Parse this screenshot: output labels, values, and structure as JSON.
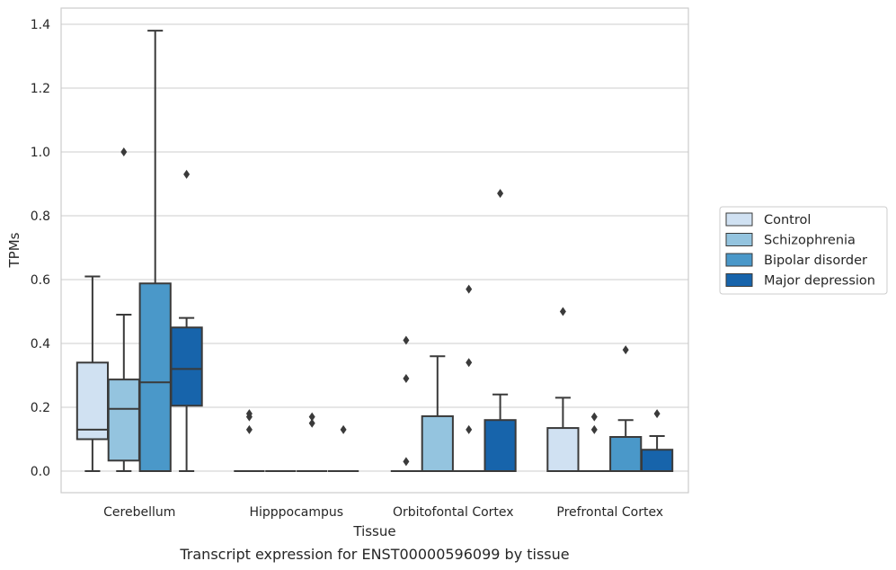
{
  "chart_data": {
    "type": "box",
    "title": "",
    "caption": "Transcript expression for ENST00000596099 by tissue",
    "xlabel": "Tissue",
    "ylabel": "TPMs",
    "ylim": [
      -0.07,
      1.45
    ],
    "yticks": [
      0.0,
      0.2,
      0.4,
      0.6,
      0.8,
      1.0,
      1.2,
      1.4
    ],
    "ytick_labels": [
      "0.0",
      "0.2",
      "0.4",
      "0.6",
      "0.8",
      "1.0",
      "1.2",
      "1.4"
    ],
    "grid": true,
    "legend_position": "right",
    "categories": [
      "Cerebellum",
      "Hipppocampus",
      "Orbitofontal Cortex",
      "Prefrontal Cortex"
    ],
    "series": [
      {
        "name": "Control",
        "color": "#d0e1f2",
        "boxes": [
          {
            "min": 0.0,
            "q1": 0.1,
            "median": 0.13,
            "q3": 0.34,
            "max": 0.61,
            "outliers": []
          },
          {
            "min": 0.0,
            "q1": 0.0,
            "median": 0.0,
            "q3": 0.0,
            "max": 0.0,
            "outliers": [
              0.13,
              0.17,
              0.18
            ]
          },
          {
            "min": 0.0,
            "q1": 0.0,
            "median": 0.0,
            "q3": 0.0,
            "max": 0.0,
            "outliers": [
              0.03,
              0.29,
              0.41
            ]
          },
          {
            "min": 0.0,
            "q1": 0.0,
            "median": 0.0,
            "q3": 0.135,
            "max": 0.23,
            "outliers": [
              0.5
            ]
          }
        ]
      },
      {
        "name": "Schizophrenia",
        "color": "#94c4df",
        "boxes": [
          {
            "min": 0.0,
            "q1": 0.033,
            "median": 0.195,
            "q3": 0.287,
            "max": 0.49,
            "outliers": [
              1.0
            ]
          },
          {
            "min": 0.0,
            "q1": 0.0,
            "median": 0.0,
            "q3": 0.0,
            "max": 0.0,
            "outliers": []
          },
          {
            "min": 0.0,
            "q1": 0.0,
            "median": 0.0,
            "q3": 0.172,
            "max": 0.36,
            "outliers": []
          },
          {
            "min": 0.0,
            "q1": 0.0,
            "median": 0.0,
            "q3": 0.0,
            "max": 0.0,
            "outliers": [
              0.13,
              0.17
            ]
          }
        ]
      },
      {
        "name": "Bipolar disorder",
        "color": "#4a98c9",
        "boxes": [
          {
            "min": 0.0,
            "q1": 0.0,
            "median": 0.278,
            "q3": 0.588,
            "max": 1.38,
            "outliers": []
          },
          {
            "min": 0.0,
            "q1": 0.0,
            "median": 0.0,
            "q3": 0.0,
            "max": 0.0,
            "outliers": [
              0.15,
              0.17
            ]
          },
          {
            "min": 0.0,
            "q1": 0.0,
            "median": 0.0,
            "q3": 0.0,
            "max": 0.0,
            "outliers": [
              0.13,
              0.34,
              0.57
            ]
          },
          {
            "min": 0.0,
            "q1": 0.0,
            "median": 0.0,
            "q3": 0.107,
            "max": 0.16,
            "outliers": [
              0.38
            ]
          }
        ]
      },
      {
        "name": "Major depression",
        "color": "#1764ab",
        "boxes": [
          {
            "min": 0.0,
            "q1": 0.205,
            "median": 0.32,
            "q3": 0.45,
            "max": 0.48,
            "outliers": [
              0.93
            ]
          },
          {
            "min": 0.0,
            "q1": 0.0,
            "median": 0.0,
            "q3": 0.0,
            "max": 0.0,
            "outliers": [
              0.13
            ]
          },
          {
            "min": 0.0,
            "q1": 0.0,
            "median": 0.0,
            "q3": 0.16,
            "max": 0.24,
            "outliers": [
              0.87
            ]
          },
          {
            "min": 0.0,
            "q1": 0.0,
            "median": 0.0,
            "q3": 0.067,
            "max": 0.11,
            "outliers": [
              0.18
            ]
          }
        ]
      }
    ]
  }
}
